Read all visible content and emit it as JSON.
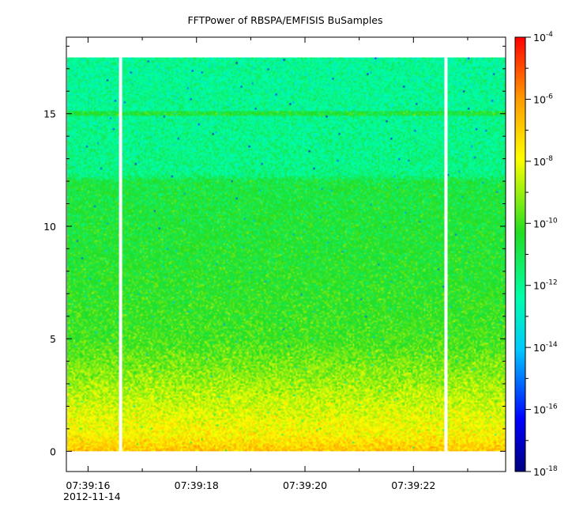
{
  "chart_data": {
    "type": "heatmap",
    "title": "FFTPower of RBSPA/EMFISIS  BuSamples",
    "xlabel": "",
    "ylabel": "",
    "x_tick_labels": [
      "07:39:16",
      "07:39:18",
      "07:39:20",
      "07:39:22"
    ],
    "x_tick_seconds": [
      16,
      18,
      20,
      22
    ],
    "x_date_label": "2012-11-14",
    "xlim_seconds": [
      15.6,
      23.7
    ],
    "y_ticks": [
      0,
      5,
      10,
      15
    ],
    "ylim": [
      -0.9,
      18.4
    ],
    "data_ylim": [
      0,
      17.5
    ],
    "gap_seconds": [
      16.6,
      22.6
    ],
    "colorbar": {
      "scale": "log",
      "range": [
        1e-18,
        0.0001
      ],
      "tick_exponents": [
        -4,
        -6,
        -8,
        -10,
        -12,
        -14,
        -16,
        -18
      ],
      "tick_base": "10",
      "colormap": [
        "#00007f",
        "#0000ff",
        "#00c8ff",
        "#00ffaa",
        "#22dd22",
        "#ffff00",
        "#ff9900",
        "#ff0000"
      ]
    },
    "z_profile": [
      {
        "freq": 0.0,
        "log_power": -6.8
      },
      {
        "freq": 0.3,
        "log_power": -7.2
      },
      {
        "freq": 0.8,
        "log_power": -7.8
      },
      {
        "freq": 2.0,
        "log_power": -8.4
      },
      {
        "freq": 3.5,
        "log_power": -9.2
      },
      {
        "freq": 5.0,
        "log_power": -10.0
      },
      {
        "freq": 8.0,
        "log_power": -10.4
      },
      {
        "freq": 12.0,
        "log_power": -10.8
      },
      {
        "freq": 12.3,
        "log_power": -11.8
      },
      {
        "freq": 15.0,
        "log_power": -12.0
      },
      {
        "freq": 17.5,
        "log_power": -12.1
      }
    ],
    "features": [
      {
        "type": "line",
        "freq": 15.0,
        "log_power": -10.6
      }
    ]
  }
}
